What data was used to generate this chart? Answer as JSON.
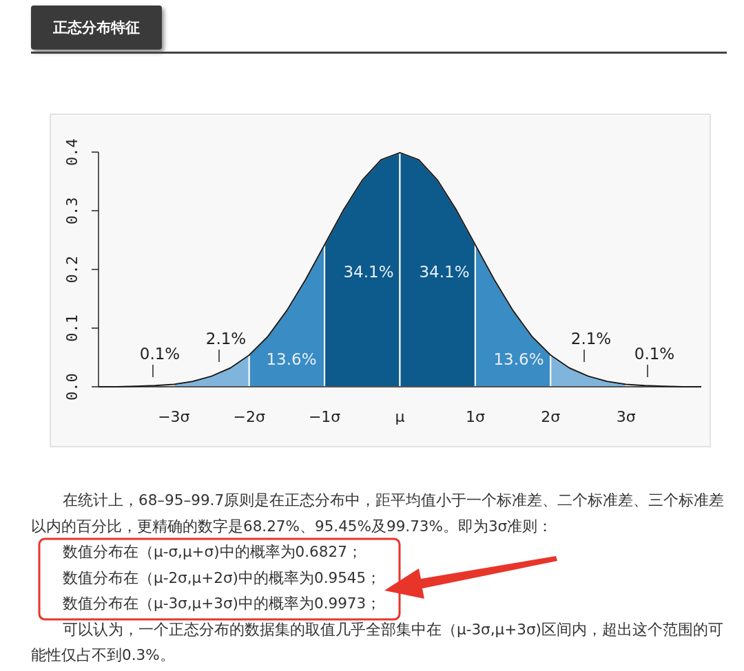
{
  "chart_data": {
    "type": "area",
    "title": "正态分布特征",
    "x": [
      -4,
      -3.75,
      -3.5,
      -3.25,
      -3,
      -2.75,
      -2.5,
      -2.25,
      -2,
      -1.75,
      -1.5,
      -1.25,
      -1,
      -0.75,
      -0.5,
      -0.25,
      0,
      0.25,
      0.5,
      0.75,
      1,
      1.25,
      1.5,
      1.75,
      2,
      2.25,
      2.5,
      2.75,
      3,
      3.25,
      3.5,
      3.75,
      4
    ],
    "series": [
      {
        "type": "line",
        "color": "#1a1a1a",
        "values": [
          0.0,
          0.0,
          0.001,
          0.002,
          0.004,
          0.009,
          0.018,
          0.032,
          0.054,
          0.086,
          0.13,
          0.183,
          0.242,
          0.301,
          0.352,
          0.387,
          0.399,
          0.387,
          0.352,
          0.301,
          0.242,
          0.183,
          0.13,
          0.086,
          0.054,
          0.032,
          0.018,
          0.009,
          0.004,
          0.002,
          0.001,
          0.0,
          0.0
        ]
      },
      {
        "color": "#7fb5dc",
        "x": [
          -3,
          -2.75,
          -2.5,
          -2.25,
          -2
        ],
        "values": [
          0.004,
          0.009,
          0.018,
          0.032,
          0.054
        ]
      },
      {
        "color": "#3a8cc4",
        "x": [
          -2,
          -1.75,
          -1.5,
          -1.25,
          -1
        ],
        "values": [
          0.054,
          0.086,
          0.13,
          0.183,
          0.242
        ]
      },
      {
        "color": "#0d5a8c",
        "x": [
          -1,
          -0.75,
          -0.5,
          -0.25,
          0
        ],
        "values": [
          0.242,
          0.301,
          0.352,
          0.387,
          0.399
        ]
      },
      {
        "color": "#0d5a8c",
        "x": [
          0,
          0.25,
          0.5,
          0.75,
          1
        ],
        "values": [
          0.399,
          0.387,
          0.352,
          0.301,
          0.242
        ]
      },
      {
        "color": "#3a8cc4",
        "x": [
          1,
          1.25,
          1.5,
          1.75,
          2
        ],
        "values": [
          0.242,
          0.183,
          0.13,
          0.086,
          0.054
        ]
      },
      {
        "color": "#7fb5dc",
        "x": [
          2,
          2.25,
          2.5,
          2.75,
          3
        ],
        "values": [
          0.054,
          0.032,
          0.018,
          0.009,
          0.004
        ]
      }
    ],
    "xlim": [
      -4,
      4
    ],
    "ylim": [
      0,
      0.4
    ],
    "xticks": [
      {
        "value": -3,
        "label": "−3σ"
      },
      {
        "value": -2,
        "label": "−2σ"
      },
      {
        "value": -1,
        "label": "−1σ"
      },
      {
        "value": 0,
        "label": "μ"
      },
      {
        "value": 1,
        "label": "1σ"
      },
      {
        "value": 2,
        "label": "2σ"
      },
      {
        "value": 3,
        "label": "3σ"
      }
    ],
    "yticks": [
      {
        "value": 0,
        "label": "0.0"
      },
      0.1,
      0.2,
      0.3,
      0.4
    ],
    "annotations": [
      "0.1%",
      "2.1%",
      "13.6%",
      "34.1%",
      "34.1%",
      "13.6%",
      "2.1%",
      "0.1%",
      "在统计上，68–95–99.7原则是在正态分布中，距平均值小于一个标准差、二个标准差、三个标准差以内的百分比，更精确的数字是68.27%、95.45%及99.73%。即为3σ准则：",
      "数值分布在（μ-σ,μ+σ)中的概率为0.6827；",
      "数值分布在（μ-2σ,μ+2σ)中的概率为0.9545；",
      "数值分布在（μ-3σ,μ+3σ)中的概率为0.9973；",
      "可以认为，一个正态分布的数据集的取值几乎全部集中在（μ-3σ,μ+3σ)区间内，超出这个范围的可能性仅占不到0.3%。"
    ],
    "grid": false
  }
}
